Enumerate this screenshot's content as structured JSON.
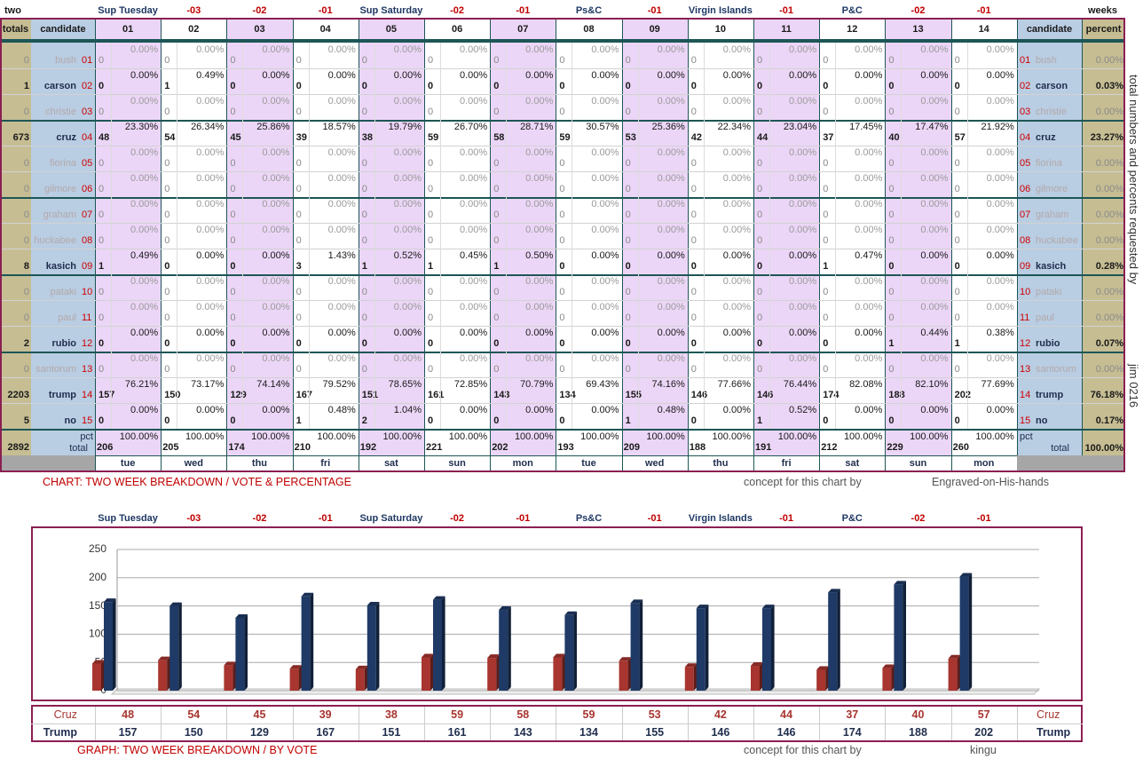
{
  "header": {
    "left": "two",
    "right": "weeks",
    "events": [
      "Sup Tuesday",
      "-03",
      "-02",
      "-01",
      "Sup Saturday",
      "-02",
      "-01",
      "Ps&C",
      "-01",
      "Virgin Islands",
      "-01",
      "P&C",
      "-02",
      "-01"
    ]
  },
  "columns": {
    "totals": "totals",
    "candidate": "candidate",
    "days": [
      "01",
      "02",
      "03",
      "04",
      "05",
      "06",
      "07",
      "08",
      "09",
      "10",
      "11",
      "12",
      "13",
      "14"
    ],
    "candidate_right": "candidate",
    "percent": "percent"
  },
  "candidates": [
    {
      "name": "bush",
      "num": "01",
      "total": 0,
      "pct": "0.00%",
      "counts": [
        0,
        0,
        0,
        0,
        0,
        0,
        0,
        0,
        0,
        0,
        0,
        0,
        0,
        0
      ],
      "pcts": [
        "0.00%",
        "0.00%",
        "0.00%",
        "0.00%",
        "0.00%",
        "0.00%",
        "0.00%",
        "0.00%",
        "0.00%",
        "0.00%",
        "0.00%",
        "0.00%",
        "0.00%",
        "0.00%"
      ]
    },
    {
      "name": "carson",
      "num": "02",
      "total": 1,
      "pct": "0.03%",
      "counts": [
        0,
        1,
        0,
        0,
        0,
        0,
        0,
        0,
        0,
        0,
        0,
        0,
        0,
        0
      ],
      "pcts": [
        "0.00%",
        "0.49%",
        "0.00%",
        "0.00%",
        "0.00%",
        "0.00%",
        "0.00%",
        "0.00%",
        "0.00%",
        "0.00%",
        "0.00%",
        "0.00%",
        "0.00%",
        "0.00%"
      ]
    },
    {
      "name": "christie",
      "num": "03",
      "total": 0,
      "pct": "0.00%",
      "counts": [
        0,
        0,
        0,
        0,
        0,
        0,
        0,
        0,
        0,
        0,
        0,
        0,
        0,
        0
      ],
      "pcts": [
        "0.00%",
        "0.00%",
        "0.00%",
        "0.00%",
        "0.00%",
        "0.00%",
        "0.00%",
        "0.00%",
        "0.00%",
        "0.00%",
        "0.00%",
        "0.00%",
        "0.00%",
        "0.00%"
      ]
    },
    {
      "name": "cruz",
      "num": "04",
      "total": 673,
      "pct": "23.27%",
      "counts": [
        48,
        54,
        45,
        39,
        38,
        59,
        58,
        59,
        53,
        42,
        44,
        37,
        40,
        57
      ],
      "pcts": [
        "23.30%",
        "26.34%",
        "25.86%",
        "18.57%",
        "19.79%",
        "26.70%",
        "28.71%",
        "30.57%",
        "25.36%",
        "22.34%",
        "23.04%",
        "17.45%",
        "17.47%",
        "21.92%"
      ]
    },
    {
      "name": "fiorina",
      "num": "05",
      "total": 0,
      "pct": "0.00%",
      "counts": [
        0,
        0,
        0,
        0,
        0,
        0,
        0,
        0,
        0,
        0,
        0,
        0,
        0,
        0
      ],
      "pcts": [
        "0.00%",
        "0.00%",
        "0.00%",
        "0.00%",
        "0.00%",
        "0.00%",
        "0.00%",
        "0.00%",
        "0.00%",
        "0.00%",
        "0.00%",
        "0.00%",
        "0.00%",
        "0.00%"
      ]
    },
    {
      "name": "gilmore",
      "num": "06",
      "total": 0,
      "pct": "0.00%",
      "counts": [
        0,
        0,
        0,
        0,
        0,
        0,
        0,
        0,
        0,
        0,
        0,
        0,
        0,
        0
      ],
      "pcts": [
        "0.00%",
        "0.00%",
        "0.00%",
        "0.00%",
        "0.00%",
        "0.00%",
        "0.00%",
        "0.00%",
        "0.00%",
        "0.00%",
        "0.00%",
        "0.00%",
        "0.00%",
        "0.00%"
      ]
    },
    {
      "name": "graham",
      "num": "07",
      "total": 0,
      "pct": "0.00%",
      "counts": [
        0,
        0,
        0,
        0,
        0,
        0,
        0,
        0,
        0,
        0,
        0,
        0,
        0,
        0
      ],
      "pcts": [
        "0.00%",
        "0.00%",
        "0.00%",
        "0.00%",
        "0.00%",
        "0.00%",
        "0.00%",
        "0.00%",
        "0.00%",
        "0.00%",
        "0.00%",
        "0.00%",
        "0.00%",
        "0.00%"
      ]
    },
    {
      "name": "huckabee",
      "num": "08",
      "total": 0,
      "pct": "0.00%",
      "counts": [
        0,
        0,
        0,
        0,
        0,
        0,
        0,
        0,
        0,
        0,
        0,
        0,
        0,
        0
      ],
      "pcts": [
        "0.00%",
        "0.00%",
        "0.00%",
        "0.00%",
        "0.00%",
        "0.00%",
        "0.00%",
        "0.00%",
        "0.00%",
        "0.00%",
        "0.00%",
        "0.00%",
        "0.00%",
        "0.00%"
      ]
    },
    {
      "name": "kasich",
      "num": "09",
      "total": 8,
      "pct": "0.28%",
      "counts": [
        1,
        0,
        0,
        3,
        1,
        1,
        1,
        0,
        0,
        0,
        0,
        1,
        0,
        0
      ],
      "pcts": [
        "0.49%",
        "0.00%",
        "0.00%",
        "1.43%",
        "0.52%",
        "0.45%",
        "0.50%",
        "0.00%",
        "0.00%",
        "0.00%",
        "0.00%",
        "0.47%",
        "0.00%",
        "0.00%"
      ]
    },
    {
      "name": "pataki",
      "num": "10",
      "total": 0,
      "pct": "0.00%",
      "counts": [
        0,
        0,
        0,
        0,
        0,
        0,
        0,
        0,
        0,
        0,
        0,
        0,
        0,
        0
      ],
      "pcts": [
        "0.00%",
        "0.00%",
        "0.00%",
        "0.00%",
        "0.00%",
        "0.00%",
        "0.00%",
        "0.00%",
        "0.00%",
        "0.00%",
        "0.00%",
        "0.00%",
        "0.00%",
        "0.00%"
      ]
    },
    {
      "name": "paul",
      "num": "11",
      "total": 0,
      "pct": "0.00%",
      "counts": [
        0,
        0,
        0,
        0,
        0,
        0,
        0,
        0,
        0,
        0,
        0,
        0,
        0,
        0
      ],
      "pcts": [
        "0.00%",
        "0.00%",
        "0.00%",
        "0.00%",
        "0.00%",
        "0.00%",
        "0.00%",
        "0.00%",
        "0.00%",
        "0.00%",
        "0.00%",
        "0.00%",
        "0.00%",
        "0.00%"
      ]
    },
    {
      "name": "rubio",
      "num": "12",
      "total": 2,
      "pct": "0.07%",
      "counts": [
        0,
        0,
        0,
        0,
        0,
        0,
        0,
        0,
        0,
        0,
        0,
        0,
        1,
        1
      ],
      "pcts": [
        "0.00%",
        "0.00%",
        "0.00%",
        "0.00%",
        "0.00%",
        "0.00%",
        "0.00%",
        "0.00%",
        "0.00%",
        "0.00%",
        "0.00%",
        "0.00%",
        "0.44%",
        "0.38%"
      ]
    },
    {
      "name": "santorum",
      "num": "13",
      "total": 0,
      "pct": "0.00%",
      "counts": [
        0,
        0,
        0,
        0,
        0,
        0,
        0,
        0,
        0,
        0,
        0,
        0,
        0,
        0
      ],
      "pcts": [
        "0.00%",
        "0.00%",
        "0.00%",
        "0.00%",
        "0.00%",
        "0.00%",
        "0.00%",
        "0.00%",
        "0.00%",
        "0.00%",
        "0.00%",
        "0.00%",
        "0.00%",
        "0.00%"
      ]
    },
    {
      "name": "trump",
      "num": "14",
      "total": 2203,
      "pct": "76.18%",
      "counts": [
        157,
        150,
        129,
        167,
        151,
        161,
        143,
        134,
        155,
        146,
        146,
        174,
        188,
        202
      ],
      "pcts": [
        "76.21%",
        "73.17%",
        "74.14%",
        "79.52%",
        "78.65%",
        "72.85%",
        "70.79%",
        "69.43%",
        "74.16%",
        "77.66%",
        "76.44%",
        "82.08%",
        "82.10%",
        "77.69%"
      ]
    },
    {
      "name": "no",
      "num": "15",
      "total": 5,
      "pct": "0.17%",
      "counts": [
        0,
        0,
        0,
        1,
        2,
        0,
        0,
        0,
        1,
        0,
        1,
        0,
        0,
        0
      ],
      "pcts": [
        "0.00%",
        "0.00%",
        "0.00%",
        "0.48%",
        "1.04%",
        "0.00%",
        "0.00%",
        "0.00%",
        "0.48%",
        "0.00%",
        "0.52%",
        "0.00%",
        "0.00%",
        "0.00%"
      ]
    }
  ],
  "total_row": {
    "pct_label": "pct",
    "label": "total",
    "total": 2892,
    "pct": "100.00%",
    "counts": [
      206,
      205,
      174,
      210,
      192,
      221,
      202,
      193,
      209,
      188,
      191,
      212,
      229,
      260
    ],
    "pcts": [
      "100.00%",
      "100.00%",
      "100.00%",
      "100.00%",
      "100.00%",
      "100.00%",
      "100.00%",
      "100.00%",
      "100.00%",
      "100.00%",
      "100.00%",
      "100.00%",
      "100.00%",
      "100.00%"
    ]
  },
  "weekdays": [
    "tue",
    "wed",
    "thu",
    "fri",
    "sat",
    "sun",
    "mon",
    "tue",
    "wed",
    "thu",
    "fri",
    "sat",
    "sun",
    "mon"
  ],
  "side_note": "total numbers and percents requested by",
  "side_sign": "jim 0216",
  "chart_footer": {
    "title": "CHART: TWO WEEK BREAKDOWN / VOTE & PERCENTAGE",
    "concept": "concept for this chart by",
    "author": "Engraved-on-His-hands"
  },
  "graph": {
    "type": "bar",
    "ylim": [
      0,
      250
    ],
    "yticks": [
      0,
      50,
      100,
      150,
      200,
      250
    ],
    "grid": true,
    "series": [
      {
        "name": "Cruz",
        "color": "#a8352f",
        "values": [
          48,
          54,
          45,
          39,
          38,
          59,
          58,
          59,
          53,
          42,
          44,
          37,
          40,
          57
        ]
      },
      {
        "name": "Trump",
        "color": "#1f3a66",
        "values": [
          157,
          150,
          129,
          167,
          151,
          161,
          143,
          134,
          155,
          146,
          146,
          174,
          188,
          202
        ]
      }
    ]
  },
  "graph_footer": {
    "title": "GRAPH: TWO WEEK BREAKDOWN / BY VOTE",
    "concept": "concept for this chart by",
    "author": "kingu"
  }
}
